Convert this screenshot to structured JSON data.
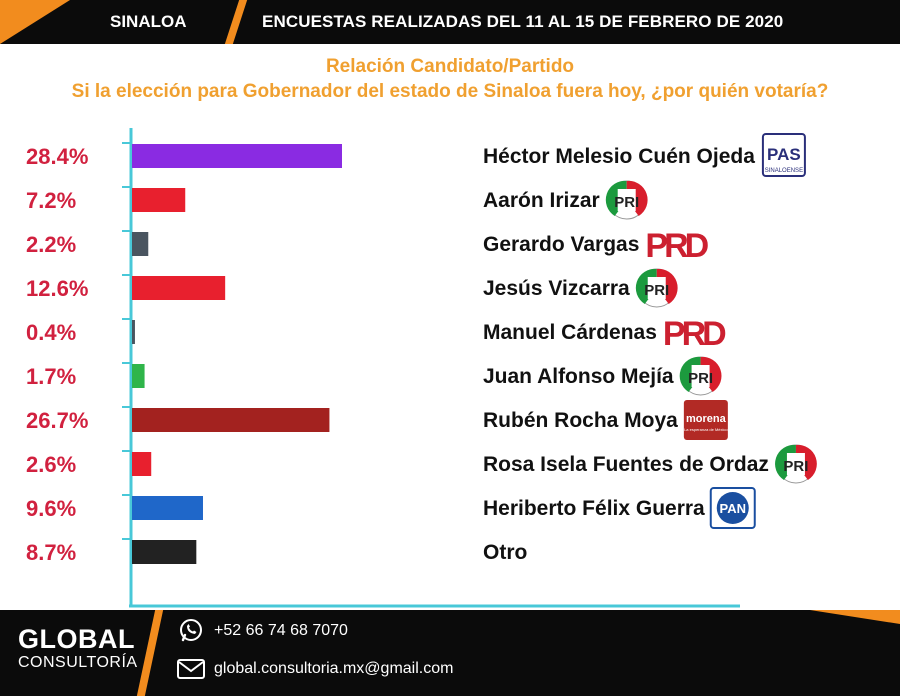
{
  "header": {
    "state": "SINALOA",
    "title": "ENCUESTAS REALIZADAS DEL 11 AL 15 DE FEBRERO DE 2020"
  },
  "subtitle": {
    "line1": "Relación Candidato/Partido",
    "line2": "Si la elección para Gobernador del estado de Sinaloa fuera hoy, ¿por quién votaría?"
  },
  "chart_data": {
    "type": "bar",
    "orientation": "horizontal",
    "categories": [
      "Héctor Melesio Cuén Ojeda",
      "Aarón Irizar",
      "Gerardo Vargas",
      "Jesús Vizcarra",
      "Manuel Cárdenas",
      "Juan Alfonso Mejía",
      "Rubén Rocha Moya",
      "Rosa Isela Fuentes de Ordaz",
      "Heriberto Félix Guerra",
      "Otro"
    ],
    "values": [
      28.4,
      7.2,
      2.2,
      12.6,
      0.4,
      1.7,
      26.7,
      2.6,
      9.6,
      8.7
    ],
    "labels": [
      "28.4%",
      "7.2%",
      "2.2%",
      "12.6%",
      "0.4%",
      "1.7%",
      "26.7%",
      "2.6%",
      "9.6%",
      "8.7%"
    ],
    "colors": [
      "#8a2be2",
      "#e8202e",
      "#4a5560",
      "#e8202e",
      "#4a5560",
      "#2fb54a",
      "#a3221f",
      "#e8202e",
      "#1f67c9",
      "#222222"
    ],
    "parties": [
      "PAS",
      "PRI",
      "PRD",
      "PRI",
      "PRD",
      "PRI",
      "morena",
      "PRI",
      "PAN",
      ""
    ],
    "axis_color": "#48c8d8",
    "xlim": [
      0,
      30
    ],
    "grid": false,
    "legend": "none"
  },
  "logos": {
    "PAS": {
      "text": "PAS",
      "subtext": "SINALOENSE",
      "color": "#2a2f7a"
    },
    "PRI": {
      "text": "PRI",
      "colors": [
        "#1c9a3e",
        "#ffffff",
        "#d81e2c"
      ]
    },
    "PRD": {
      "text": "PRD",
      "color": "#cc2030"
    },
    "morena": {
      "text": "morena",
      "subtext": "La esperanza de México",
      "color": "#b22a25"
    },
    "PAN": {
      "text": "PAN",
      "color": "#1a4fa0"
    }
  },
  "footer": {
    "brand_line1": "GLOBAL",
    "brand_line2": "CONSULTORÍA",
    "phone": "+52 66 74 68 7070",
    "email": "global.consultoria.mx@gmail.com",
    "phone_icon": "whatsapp-icon",
    "email_icon": "mail-icon"
  }
}
